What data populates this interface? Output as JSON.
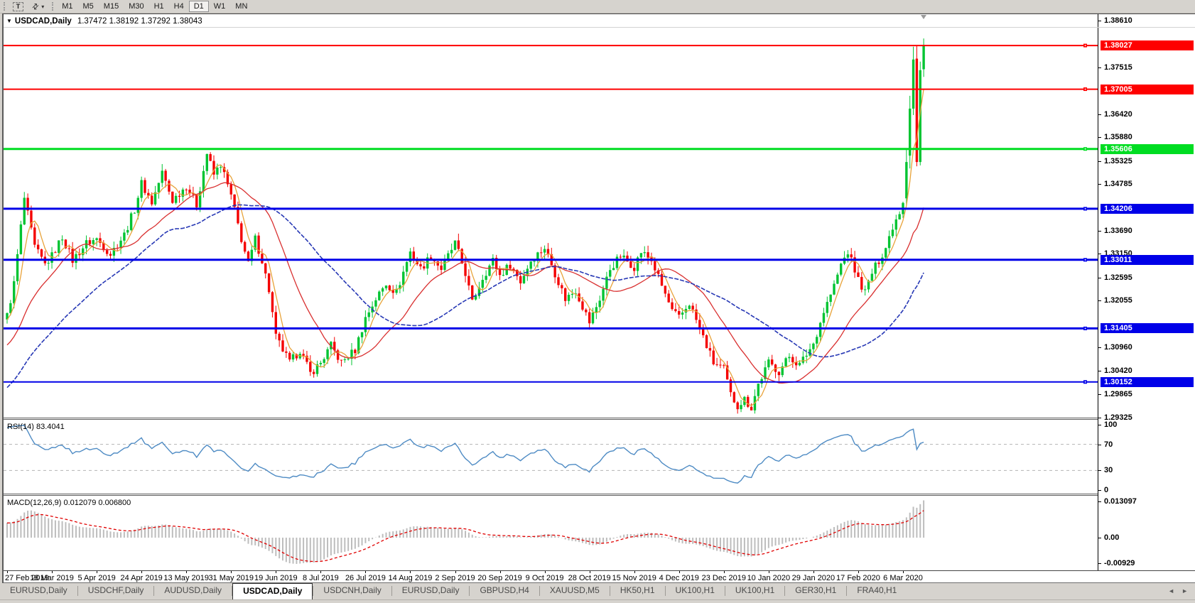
{
  "toolbar": {
    "text_tool": "T",
    "arrange_caret": "▾",
    "timeframes": [
      "M1",
      "M5",
      "M15",
      "M30",
      "H1",
      "H4",
      "D1",
      "W1",
      "MN"
    ],
    "active_timeframe": "D1"
  },
  "chart_header": {
    "symbol_caret": "▼",
    "symbol_label": "USDCAD,Daily",
    "ohlc_text": "1.37472 1.38192 1.37292 1.38043"
  },
  "indicators": {
    "rsi_label": "RSI(14) 83.4041",
    "macd_label": "MACD(12,26,9) 0.012079 0.006800"
  },
  "chart_data": {
    "type": "candlestick",
    "symbol": "USDCAD",
    "timeframe": "Daily",
    "last_bar": {
      "open": 1.37472,
      "high": 1.38192,
      "low": 1.37292,
      "close": 1.38043
    },
    "bar_count": 267,
    "bars_per_xlabel": 13,
    "x_labels": [
      "27 Feb 2019",
      "18 Mar 2019",
      "5 Apr 2019",
      "24 Apr 2019",
      "13 May 2019",
      "31 May 2019",
      "19 Jun 2019",
      "8 Jul 2019",
      "26 Jul 2019",
      "14 Aug 2019",
      "2 Sep 2019",
      "20 Sep 2019",
      "9 Oct 2019",
      "28 Oct 2019",
      "15 Nov 2019",
      "4 Dec 2019",
      "23 Dec 2019",
      "10 Jan 2020",
      "29 Jan 2020",
      "17 Feb 2020",
      "6 Mar 2020"
    ],
    "price_axis": {
      "min": 1.29317,
      "max": 1.3876,
      "ticks": [
        "1.38610",
        "1.37515",
        "1.36420",
        "1.35880",
        "1.35325",
        "1.34785",
        "1.33690",
        "1.33150",
        "1.32595",
        "1.32055",
        "1.30960",
        "1.30420",
        "1.29865",
        "1.29325"
      ]
    },
    "levels": [
      {
        "price": 1.38027,
        "label": "1.38027",
        "color": "#FE0000",
        "width": 2
      },
      {
        "price": 1.37005,
        "label": "1.37005",
        "color": "#FE0000",
        "width": 2
      },
      {
        "price": 1.35606,
        "label": "1.35606",
        "color": "#00DD22",
        "width": 3
      },
      {
        "price": 1.34206,
        "label": "1.34206",
        "color": "#0000E8",
        "width": 3
      },
      {
        "price": 1.33011,
        "label": "1.33011",
        "color": "#0000E8",
        "width": 3
      },
      {
        "price": 1.31405,
        "label": "1.31405",
        "color": "#0000E8",
        "width": 3
      },
      {
        "price": 1.30152,
        "label": "1.30152",
        "color": "#0000E8",
        "width": 2
      }
    ],
    "close_path_anchors": [
      [
        0,
        1.317
      ],
      [
        2,
        1.3245
      ],
      [
        5,
        1.3445
      ],
      [
        8,
        1.333
      ],
      [
        11,
        1.329
      ],
      [
        13,
        1.331
      ],
      [
        16,
        1.3355
      ],
      [
        19,
        1.33
      ],
      [
        23,
        1.334
      ],
      [
        26,
        1.335
      ],
      [
        30,
        1.3315
      ],
      [
        34,
        1.336
      ],
      [
        37,
        1.342
      ],
      [
        39,
        1.348
      ],
      [
        42,
        1.3435
      ],
      [
        45,
        1.3505
      ],
      [
        48,
        1.344
      ],
      [
        52,
        1.3475
      ],
      [
        55,
        1.343
      ],
      [
        58,
        1.355
      ],
      [
        60,
        1.35
      ],
      [
        62,
        1.3525
      ],
      [
        65,
        1.345
      ],
      [
        68,
        1.335
      ],
      [
        70,
        1.329
      ],
      [
        72,
        1.335
      ],
      [
        74,
        1.33
      ],
      [
        76,
        1.323
      ],
      [
        78,
        1.312
      ],
      [
        82,
        1.306
      ],
      [
        85,
        1.309
      ],
      [
        88,
        1.3035
      ],
      [
        91,
        1.306
      ],
      [
        94,
        1.31
      ],
      [
        97,
        1.306
      ],
      [
        101,
        1.309
      ],
      [
        104,
        1.3165
      ],
      [
        107,
        1.321
      ],
      [
        110,
        1.3245
      ],
      [
        113,
        1.3225
      ],
      [
        117,
        1.332
      ],
      [
        120,
        1.328
      ],
      [
        123,
        1.331
      ],
      [
        126,
        1.328
      ],
      [
        130,
        1.334
      ],
      [
        133,
        1.327
      ],
      [
        135,
        1.32
      ],
      [
        138,
        1.326
      ],
      [
        141,
        1.33
      ],
      [
        143,
        1.3265
      ],
      [
        146,
        1.329
      ],
      [
        149,
        1.325
      ],
      [
        152,
        1.33
      ],
      [
        156,
        1.333
      ],
      [
        159,
        1.327
      ],
      [
        162,
        1.321
      ],
      [
        165,
        1.323
      ],
      [
        169,
        1.3155
      ],
      [
        172,
        1.321
      ],
      [
        175,
        1.328
      ],
      [
        178,
        1.331
      ],
      [
        182,
        1.3285
      ],
      [
        184,
        1.332
      ],
      [
        187,
        1.33
      ],
      [
        190,
        1.324
      ],
      [
        193,
        1.318
      ],
      [
        195,
        1.3165
      ],
      [
        198,
        1.32
      ],
      [
        200,
        1.316
      ],
      [
        203,
        1.31
      ],
      [
        205,
        1.306
      ],
      [
        208,
        1.3045
      ],
      [
        210,
        1.2985
      ],
      [
        212,
        1.296
      ],
      [
        214,
        1.2975
      ],
      [
        216,
        1.2955
      ],
      [
        218,
        1.301
      ],
      [
        221,
        1.306
      ],
      [
        224,
        1.304
      ],
      [
        227,
        1.3075
      ],
      [
        230,
        1.3055
      ],
      [
        234,
        1.3105
      ],
      [
        237,
        1.318
      ],
      [
        240,
        1.324
      ],
      [
        242,
        1.329
      ],
      [
        244,
        1.332
      ],
      [
        247,
        1.3255
      ],
      [
        249,
        1.3225
      ],
      [
        251,
        1.327
      ],
      [
        253,
        1.33
      ],
      [
        255,
        1.333
      ],
      [
        257,
        1.338
      ],
      [
        259,
        1.3415
      ],
      [
        260,
        1.344
      ],
      [
        261,
        1.353
      ],
      [
        262,
        1.3655
      ],
      [
        263,
        1.377
      ],
      [
        264,
        1.353
      ],
      [
        265,
        1.3745
      ],
      [
        266,
        1.38043
      ]
    ],
    "bar_overrides": {
      "261": [
        1.3445,
        1.356,
        1.343,
        1.353
      ],
      "262": [
        1.3545,
        1.3685,
        1.3515,
        1.3655
      ],
      "263": [
        1.3655,
        1.38,
        1.364,
        1.377
      ],
      "264": [
        1.3772,
        1.3802,
        1.352,
        1.353
      ],
      "265": [
        1.353,
        1.3765,
        1.3522,
        1.3745
      ],
      "266": [
        1.37472,
        1.38192,
        1.37292,
        1.38043
      ]
    },
    "noise": {
      "body": 0.001,
      "wick": 0.0016
    },
    "history_seed": {
      "prefix_bars": 50,
      "prefix_start": 1.278
    },
    "colors": {
      "up": "#00C432",
      "down": "#F40000",
      "ma_fast": "#E8A33A",
      "ma_mid": "#D93030",
      "ma_slow": "#2738B5",
      "rsi": "#4E8BC4",
      "rsi_guide": "#b4b4b4",
      "macd_hist": "#BDBDBD",
      "macd_signal": "#E00000"
    },
    "moving_averages": [
      {
        "name": "fast",
        "period": 5,
        "color_key": "ma_fast"
      },
      {
        "name": "mid",
        "period": 20,
        "color_key": "ma_mid"
      },
      {
        "name": "slow",
        "period": 45,
        "color_key": "ma_slow"
      }
    ],
    "rsi": {
      "period": 14,
      "current": 83.4041,
      "scale_ticks": [
        100,
        70,
        30,
        0
      ],
      "guides": [
        70,
        30
      ]
    },
    "macd": {
      "fast": 12,
      "slow": 26,
      "signal": 9,
      "current": [
        0.012079,
        0.0068
      ],
      "scale_ticks": [
        {
          "label": "0.013097",
          "value": 0.013097
        },
        {
          "label": "0.00",
          "value": 0
        },
        {
          "label": "-0.00929",
          "value": -0.00929
        }
      ]
    }
  },
  "tabs": {
    "items": [
      "EURUSD,Daily",
      "USDCHF,Daily",
      "AUDUSD,Daily",
      "USDCAD,Daily",
      "USDCNH,Daily",
      "EURUSD,Daily",
      "GBPUSD,H4",
      "XAUUSD,M5",
      "HK50,H1",
      "UK100,H1",
      "UK100,H1",
      "GER30,H1",
      "FRA40,H1"
    ],
    "active_index": 3,
    "scroll_left": "◄",
    "scroll_right": "►"
  }
}
